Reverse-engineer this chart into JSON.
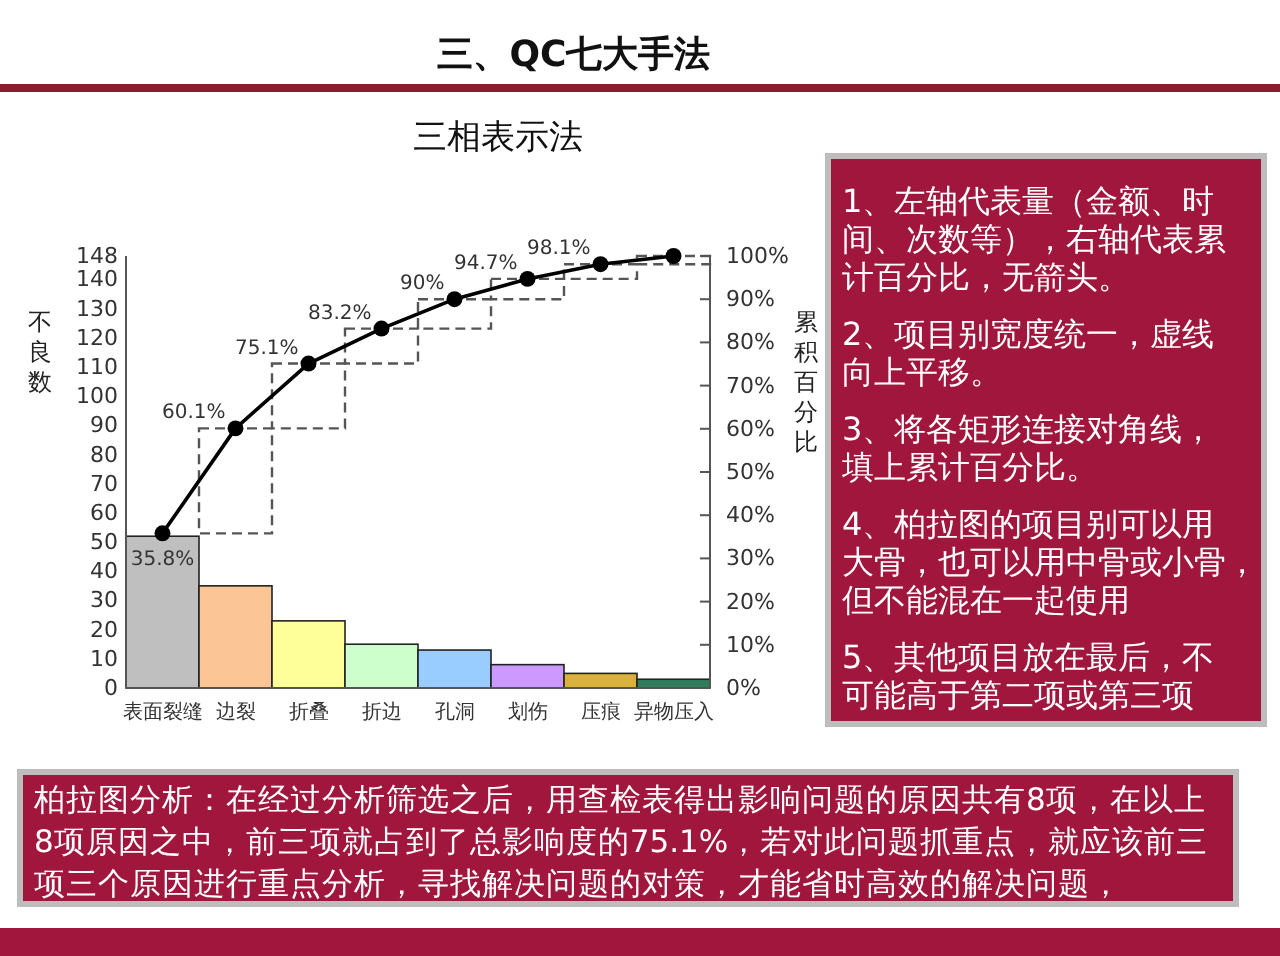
{
  "chart_data": {
    "type": "bar",
    "title": "三、QC七大手法",
    "subtitle": "三相表示法",
    "ylabel": "不良数",
    "y2label": "累积百分比",
    "categories": [
      "表面裂缝",
      "边裂",
      "折叠",
      "折边",
      "孔洞",
      "划伤",
      "压痕",
      "异物压入"
    ],
    "ylim": [
      0,
      148
    ],
    "yticks": [
      0,
      10,
      20,
      30,
      40,
      50,
      60,
      70,
      80,
      90,
      100,
      110,
      120,
      130,
      140,
      148
    ],
    "y2lim": [
      0,
      100
    ],
    "y2ticks": [
      {
        "value": 0,
        "label": "0%"
      },
      {
        "value": 10,
        "label": "10%"
      },
      {
        "value": 20,
        "label": "20%"
      },
      {
        "value": 30,
        "label": "30%"
      },
      {
        "value": 40,
        "label": "40%"
      },
      {
        "value": 50,
        "label": "50%"
      },
      {
        "value": 60,
        "label": "60%"
      },
      {
        "value": 70,
        "label": "70%"
      },
      {
        "value": 80,
        "label": "80%"
      },
      {
        "value": 90,
        "label": "90%"
      },
      {
        "value": 100,
        "label": "100%"
      }
    ],
    "series": [
      {
        "colors": [
          "#bfbfbf",
          "#fcc596",
          "#ffff99",
          "#ccffcc",
          "#99ccff",
          "#cc99ff",
          "#d9b13b",
          "#2f7d5c"
        ],
        "values": [
          52,
          35,
          23,
          15,
          13,
          8,
          5,
          3
        ]
      },
      {
        "axis": "y2",
        "base": [
          null,
          35.8,
          60.1,
          75.1,
          83.2,
          90,
          94.7,
          98.1
        ],
        "values": [
          null,
          24.3,
          15.0,
          8.1,
          6.8,
          4.7,
          3.4,
          1.9
        ],
        "color": "#555555",
        "line_style": "dashed"
      },
      {
        "type": "line",
        "axis": "y2",
        "values": [
          35.8,
          60.1,
          75.1,
          83.2,
          90,
          94.7,
          98.1,
          100
        ],
        "color": "#000000",
        "marker": "circle",
        "value_labels": [
          "35.8%",
          "60.1%",
          "75.1%",
          "83.2%",
          "90%",
          "94.7%",
          "98.1%",
          null
        ]
      }
    ],
    "annotations": [
      "1、左轴代表量（金额、时间、次数等），右轴代表累计百分比，无箭头。",
      "2、项目别宽度统一，虚线向上平移。",
      "3、将各矩形连接对角线，填上累计百分比。",
      "4、柏拉图的项目别可以用大骨，也可以用中骨或小骨，但不能混在一起使用",
      "5、其他项目放在最后，不可能高于第二项或第三项",
      "柏拉图分析：在经过分析筛选之后，用查检表得出影响问题的原因共有8项，在以上8项原因之中，前三项就占到了总影响度的75.1%，若对此问题抓重点，就应该前三项三个原因进行重点分析，寻找解决问题的对策，才能省时高效的解决问题，"
    ]
  }
}
